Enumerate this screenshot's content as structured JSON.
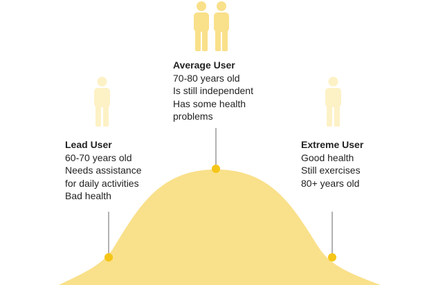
{
  "colors": {
    "curve": "#f9e08a",
    "dot": "#f5c518",
    "connector": "#888888",
    "person_strong": "#f9e08a",
    "person_faint": "#fdf1c6"
  },
  "groups": {
    "average": {
      "title": "Average User",
      "lines": [
        "70-80 years old",
        "Is still independent",
        "Has some health",
        "problems"
      ],
      "icon": "person-pair-icon"
    },
    "lead": {
      "title": "Lead User",
      "lines": [
        "60-70 years old",
        "Needs assistance",
        "for daily activities",
        "Bad health"
      ],
      "icon": "person-icon"
    },
    "extreme": {
      "title": "Extreme User",
      "lines": [
        "Good health",
        "Still exercises",
        "80+ years old"
      ],
      "icon": "person-icon"
    }
  }
}
